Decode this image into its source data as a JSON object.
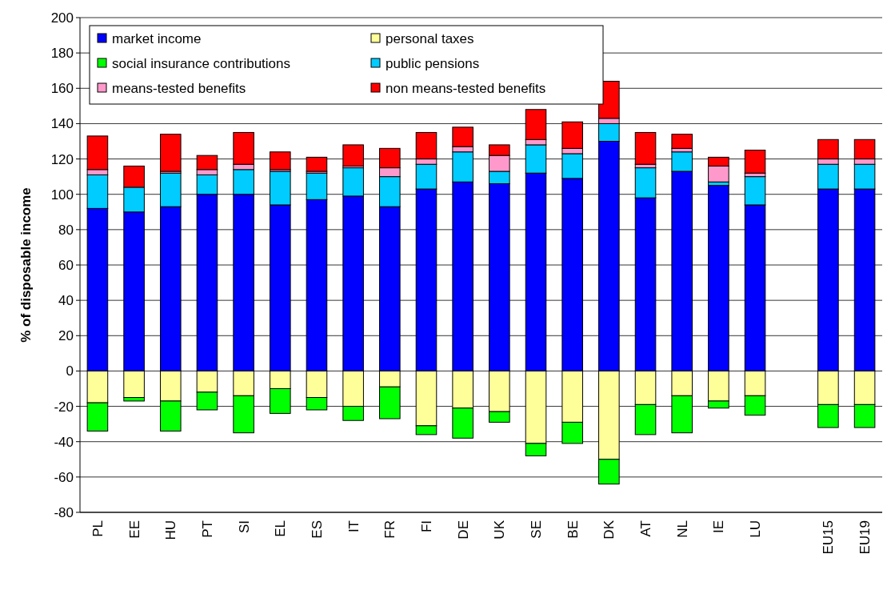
{
  "chart_data": {
    "type": "bar",
    "stacked": true,
    "ylabel": "% of disposable income",
    "categories": [
      "PL",
      "EE",
      "HU",
      "PT",
      "SI",
      "EL",
      "ES",
      "IT",
      "FR",
      "FI",
      "DE",
      "UK",
      "SE",
      "BE",
      "DK",
      "AT",
      "NL",
      "IE",
      "LU",
      null,
      "EU15",
      "EU19"
    ],
    "series": [
      {
        "name": "market income",
        "color": "#0000ff",
        "values": [
          92,
          90,
          93,
          100,
          100,
          94,
          97,
          99,
          93,
          103,
          107,
          106,
          112,
          109,
          130,
          98,
          113,
          105,
          94,
          null,
          103,
          103
        ]
      },
      {
        "name": "personal taxes",
        "color": "#ffff99",
        "values": [
          -18,
          -15,
          -17,
          -12,
          -14,
          -10,
          -15,
          -20,
          -9,
          -31,
          -21,
          -23,
          -41,
          -29,
          -50,
          -19,
          -14,
          -17,
          -14,
          null,
          -19,
          -19
        ]
      },
      {
        "name": "social insurance contributions",
        "color": "#00ff00",
        "values": [
          -16,
          -2,
          -17,
          -10,
          -21,
          -14,
          -7,
          -8,
          -18,
          -5,
          -17,
          -6,
          -7,
          -12,
          -14,
          -17,
          -21,
          -4,
          -11,
          null,
          -13,
          -13
        ]
      },
      {
        "name": "public pensions",
        "color": "#00ccff",
        "values": [
          19,
          14,
          19,
          11,
          14,
          19,
          15,
          16,
          17,
          14,
          17,
          7,
          16,
          14,
          10,
          17,
          11,
          2,
          16,
          null,
          14,
          14
        ]
      },
      {
        "name": "means-tested benefits",
        "color": "#ff99cc",
        "values": [
          3,
          0,
          1,
          3,
          3,
          1,
          1,
          1,
          5,
          3,
          3,
          9,
          3,
          3,
          3,
          2,
          2,
          9,
          2,
          null,
          3,
          3
        ]
      },
      {
        "name": "non means-tested benefits",
        "color": "#ff0000",
        "values": [
          19,
          12,
          21,
          8,
          18,
          10,
          8,
          12,
          11,
          15,
          11,
          6,
          17,
          15,
          21,
          18,
          8,
          5,
          13,
          null,
          11,
          11
        ]
      }
    ],
    "ylim": [
      -80,
      200
    ],
    "yticks": [
      -80,
      -60,
      -40,
      -20,
      0,
      20,
      40,
      60,
      80,
      100,
      120,
      140,
      160,
      180,
      200
    ],
    "grid": "y",
    "legend": "top left"
  }
}
